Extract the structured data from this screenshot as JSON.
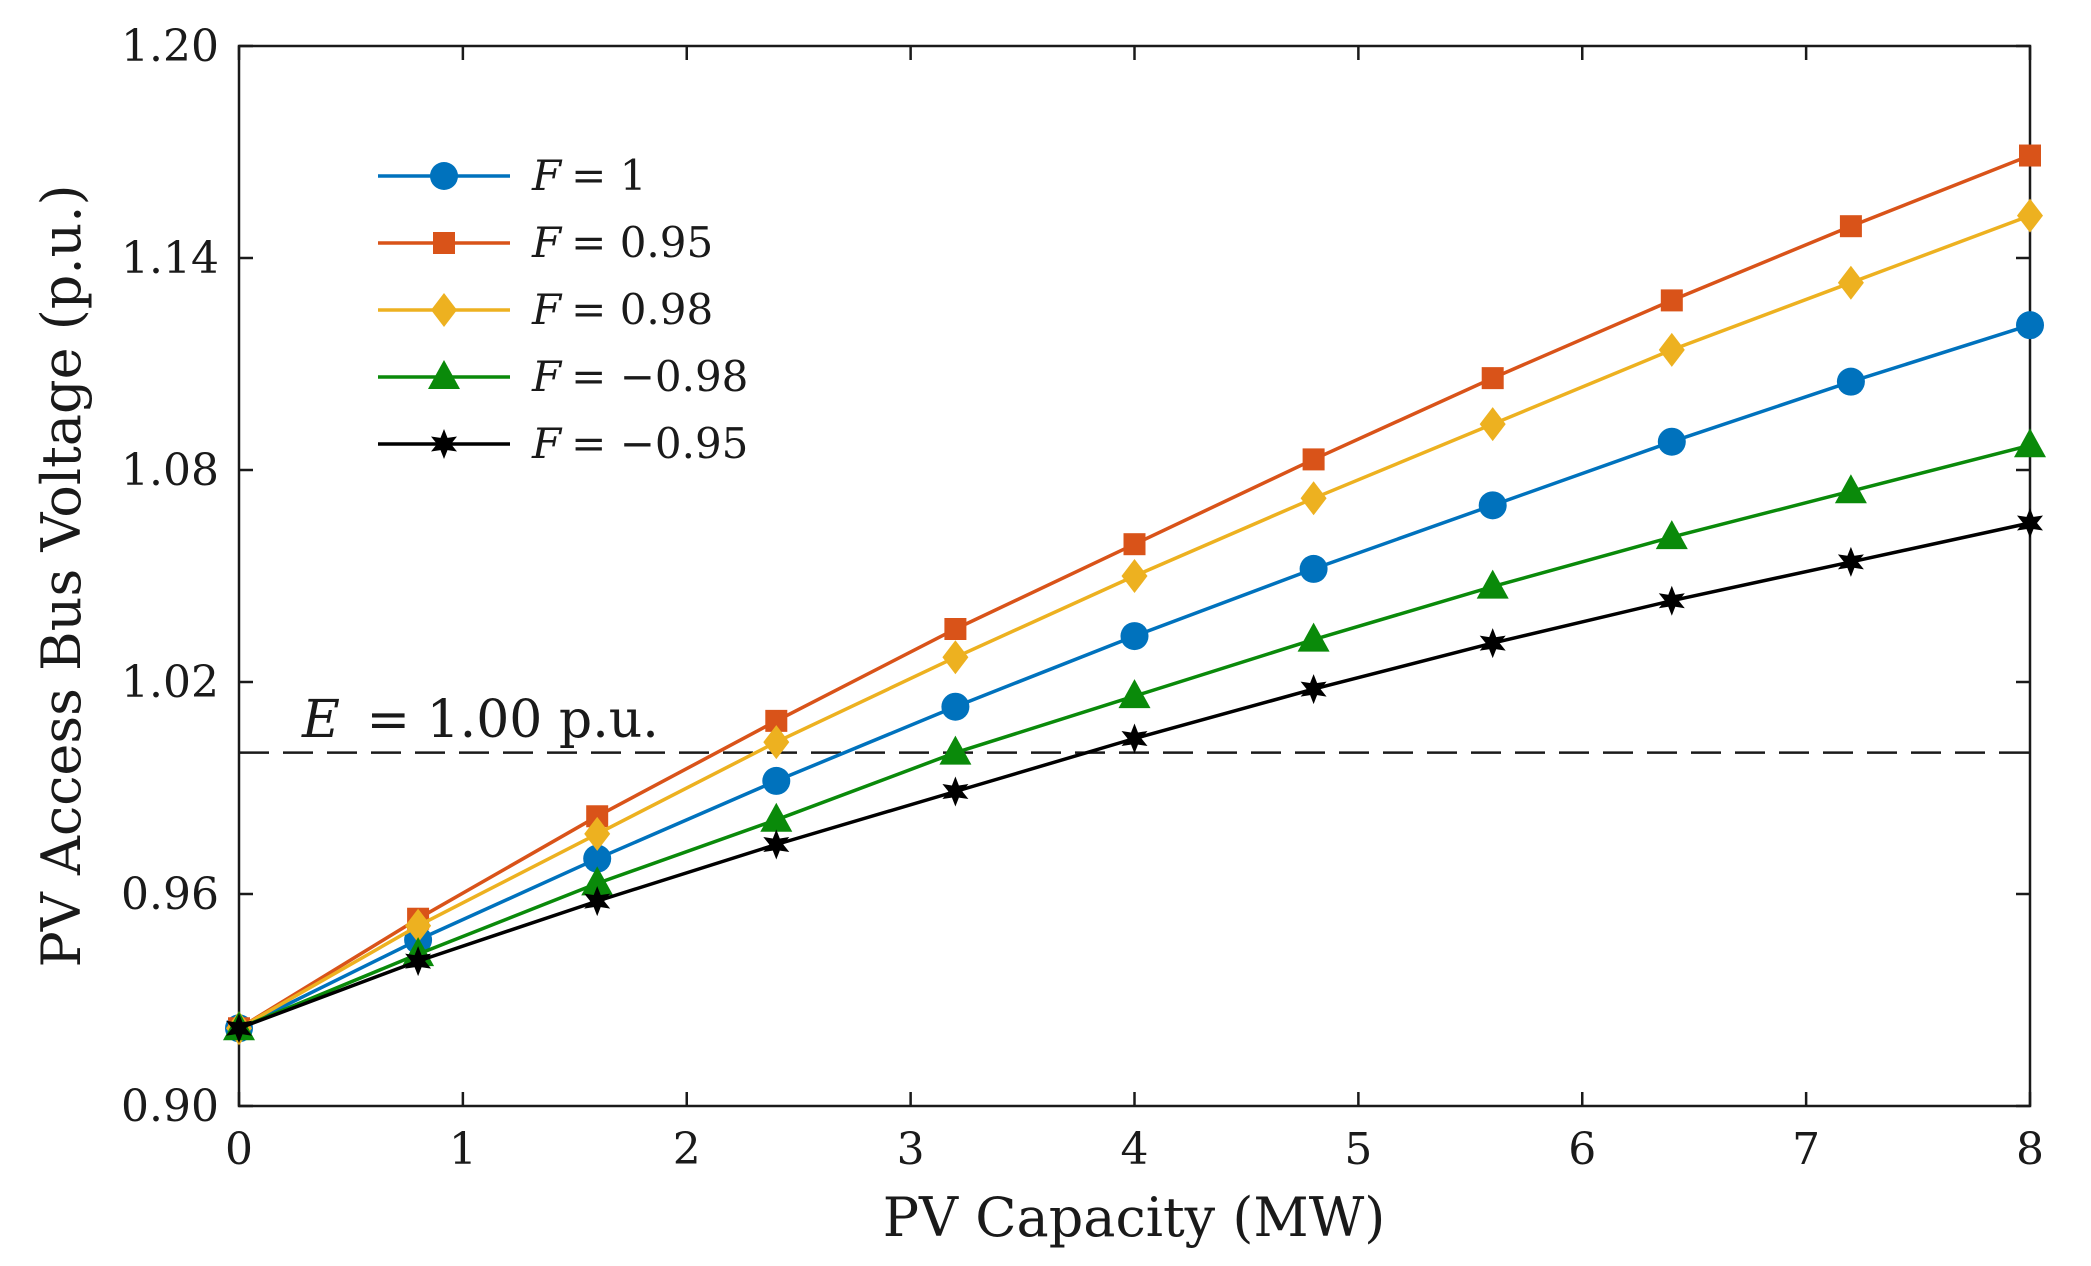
{
  "chart_data": {
    "type": "line",
    "title": "",
    "xlabel": "PV Capacity (MW)",
    "ylabel": "PV Access Bus Voltage (p.u.)",
    "xlim": [
      0,
      8
    ],
    "ylim": [
      0.9,
      1.2
    ],
    "xticks": [
      0,
      1,
      2,
      3,
      4,
      5,
      6,
      7,
      8
    ],
    "xtick_labels": [
      "0",
      "1",
      "2",
      "3",
      "4",
      "5",
      "6",
      "7",
      "8"
    ],
    "yticks": [
      0.9,
      0.96,
      1.02,
      1.08,
      1.14,
      1.2
    ],
    "ytick_labels": [
      "0.90",
      "0.96",
      "1.02",
      "1.08",
      "1.14",
      "1.20"
    ],
    "grid": false,
    "legend_position": "top-left",
    "x": [
      0,
      0.8,
      1.6,
      2.4,
      3.2,
      4.0,
      4.8,
      5.6,
      6.4,
      7.2,
      8.0
    ],
    "series": [
      {
        "name": "F = 1",
        "legend_var": "F",
        "legend_rest": "= 1",
        "color": "#0072BD",
        "marker": "circle",
        "values": [
          0.922,
          0.947,
          0.97,
          0.992,
          1.013,
          1.033,
          1.052,
          1.07,
          1.088,
          1.105,
          1.121
        ]
      },
      {
        "name": "F = 0.95",
        "legend_var": "F",
        "legend_rest": "= 0.95",
        "color": "#D95319",
        "marker": "square",
        "values": [
          0.922,
          0.953,
          0.982,
          1.009,
          1.035,
          1.059,
          1.083,
          1.106,
          1.128,
          1.149,
          1.169
        ]
      },
      {
        "name": "F = 0.98",
        "legend_var": "F",
        "legend_rest": "= 0.98",
        "color": "#EDB120",
        "marker": "diamond",
        "values": [
          0.922,
          0.951,
          0.977,
          1.003,
          1.027,
          1.05,
          1.072,
          1.093,
          1.114,
          1.133,
          1.152
        ]
      },
      {
        "name": "F = −0.98",
        "legend_var": "F",
        "legend_rest": "= −0.98",
        "color": "#0A8A0A",
        "marker": "triangle",
        "values": [
          0.922,
          0.943,
          0.963,
          0.981,
          1.0,
          1.016,
          1.032,
          1.047,
          1.061,
          1.074,
          1.087
        ]
      },
      {
        "name": "F = −0.95",
        "legend_var": "F",
        "legend_rest": "= −0.95",
        "color": "#000000",
        "marker": "star",
        "values": [
          0.922,
          0.941,
          0.958,
          0.974,
          0.989,
          1.004,
          1.018,
          1.031,
          1.043,
          1.054,
          1.065
        ]
      }
    ],
    "reference_line": {
      "value": 1.0,
      "style": "dashed",
      "color": "#000000",
      "label_var": "E",
      "label_rest": "= 1.00 p.u."
    }
  }
}
